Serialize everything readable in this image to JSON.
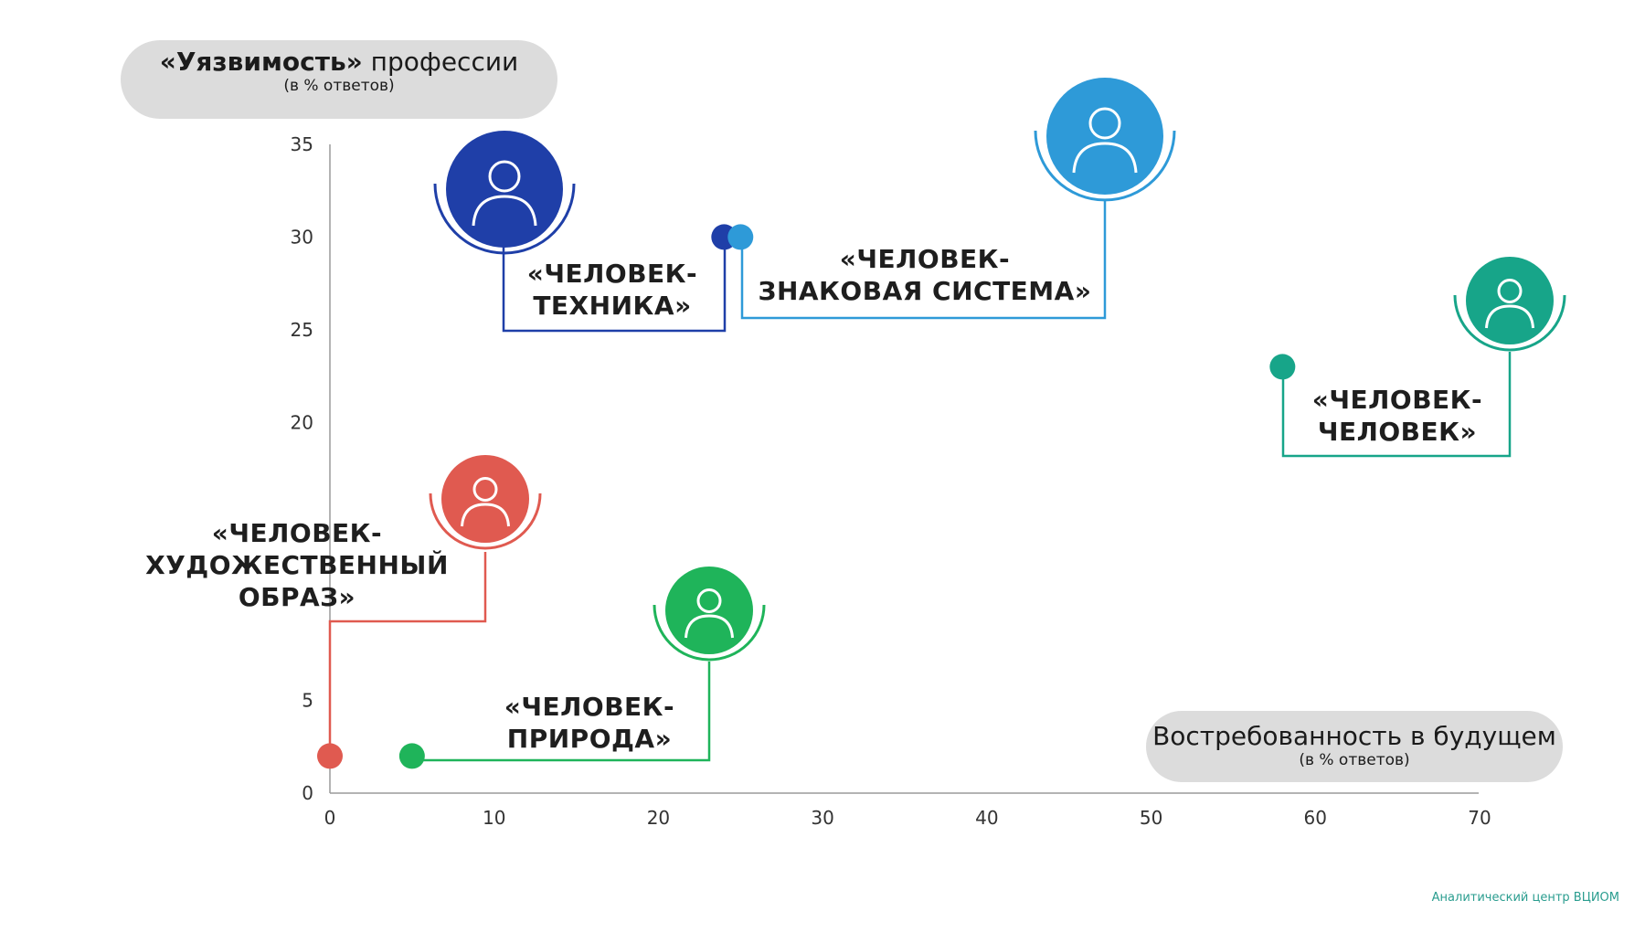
{
  "axes": {
    "y_title_bold": "«Уязвимость»",
    "y_title_rest": " профессии",
    "y_subtitle": "(в % ответов)",
    "x_title": "Востребованность в будущем",
    "x_subtitle": "(в % ответов)"
  },
  "chart_data": {
    "type": "scatter",
    "xlabel": "Востребованность в будущем (в % ответов)",
    "ylabel": "«Уязвимость» профессии (в % ответов)",
    "xlim": [
      0,
      70
    ],
    "ylim": [
      0,
      35
    ],
    "x_ticks": [
      "0",
      "10",
      "20",
      "30",
      "40",
      "50",
      "60",
      "70"
    ],
    "y_ticks": [
      "0",
      "5",
      "20",
      "25",
      "30",
      "35"
    ],
    "grid": false,
    "points": [
      {
        "label": "«ЧЕЛОВЕК-\nТЕХНИКА»",
        "x": 24,
        "y": 30,
        "color": "#1f3fa8",
        "icon": "robot-head-icon"
      },
      {
        "label": "«ЧЕЛОВЕК-\nЗНАКОВАЯ СИСТЕМА»",
        "x": 25,
        "y": 30,
        "color": "#2e9ad8",
        "icon": "office-worker-laptop-icon"
      },
      {
        "label": "«ЧЕЛОВЕК-\nЧЕЛОВЕК»",
        "x": 58,
        "y": 23,
        "color": "#17a589",
        "icon": "person-tie-icon"
      },
      {
        "label": "«ЧЕЛОВЕК-\nХУДОЖЕСТВЕННЫЙ\nОБРАЗ»",
        "x": 0,
        "y": 2,
        "color": "#e05a50",
        "icon": "artist-palette-icon"
      },
      {
        "label": "«ЧЕЛОВЕК-\nПРИРОДА»",
        "x": 5,
        "y": 2,
        "color": "#1fb45a",
        "icon": "farmer-plant-icon"
      }
    ]
  },
  "footer": "Аналитический центр ВЦИОМ"
}
